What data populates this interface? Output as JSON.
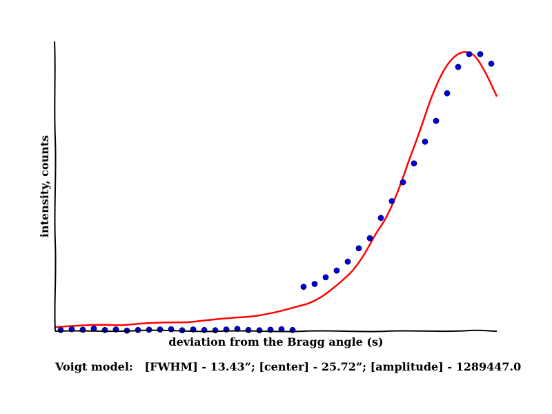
{
  "chart_data": {
    "type": "scatter",
    "xlabel": "deviation from the Bragg angle (s)",
    "ylabel": "intensity, counts",
    "caption": "Voigt model:   [FWHM] - 13.43”; [center] - 25.72”; [amplitude] - 1289447.0",
    "xlim": [
      0,
      40
    ],
    "ylim": [
      0,
      100
    ],
    "grid": false,
    "colors": {
      "points": "#0000dd",
      "fit": "#ff0000",
      "axes": "#000000"
    },
    "series": [
      {
        "kind": "points",
        "x": [
          0.5,
          1.5,
          2.5,
          3.5,
          4.5,
          5.5,
          6.5,
          7.5,
          8.5,
          9.5,
          10.5,
          11.5,
          12.5,
          13.5,
          14.5,
          15.5,
          16.5,
          17.5,
          18.5,
          19.5,
          20.5,
          21.5,
          22.5,
          23.5,
          24.5,
          25.5,
          26.5,
          27.5,
          28.5,
          29.5,
          30.5,
          31.5,
          32.5,
          33.5,
          34.5,
          35.5,
          36.5,
          37.5,
          38.5,
          39.5
        ],
        "y": [
          0.4,
          0.7,
          0.5,
          0.9,
          0.4,
          0.6,
          0.2,
          0.4,
          0.5,
          0.6,
          0.7,
          0.3,
          0.6,
          0.4,
          0.3,
          0.6,
          0.8,
          0.4,
          0.3,
          0.5,
          0.7,
          0.4,
          15.3,
          16.3,
          18.6,
          20.9,
          24.0,
          28.6,
          32.1,
          39.1,
          44.9,
          51.4,
          57.9,
          65.4,
          72.6,
          82.1,
          91.2,
          95.6,
          95.6,
          92.3
        ]
      },
      {
        "kind": "fit",
        "x": [
          0,
          2,
          4,
          6,
          8,
          10,
          12,
          14,
          16,
          18,
          20,
          22,
          23,
          24,
          25,
          26,
          27,
          28,
          29,
          30,
          31,
          32,
          33,
          34,
          35,
          36,
          37,
          38,
          39,
          40
        ],
        "y": [
          1.4,
          1.9,
          2.2,
          2.1,
          2.7,
          3.0,
          3.1,
          3.9,
          4.6,
          5.2,
          6.6,
          8.6,
          9.7,
          11.6,
          14.3,
          17.5,
          21.2,
          26.6,
          33.3,
          39.4,
          47.9,
          58.4,
          68.8,
          79.8,
          88.6,
          94.1,
          96.3,
          94.9,
          89.0,
          81.0
        ]
      }
    ]
  }
}
